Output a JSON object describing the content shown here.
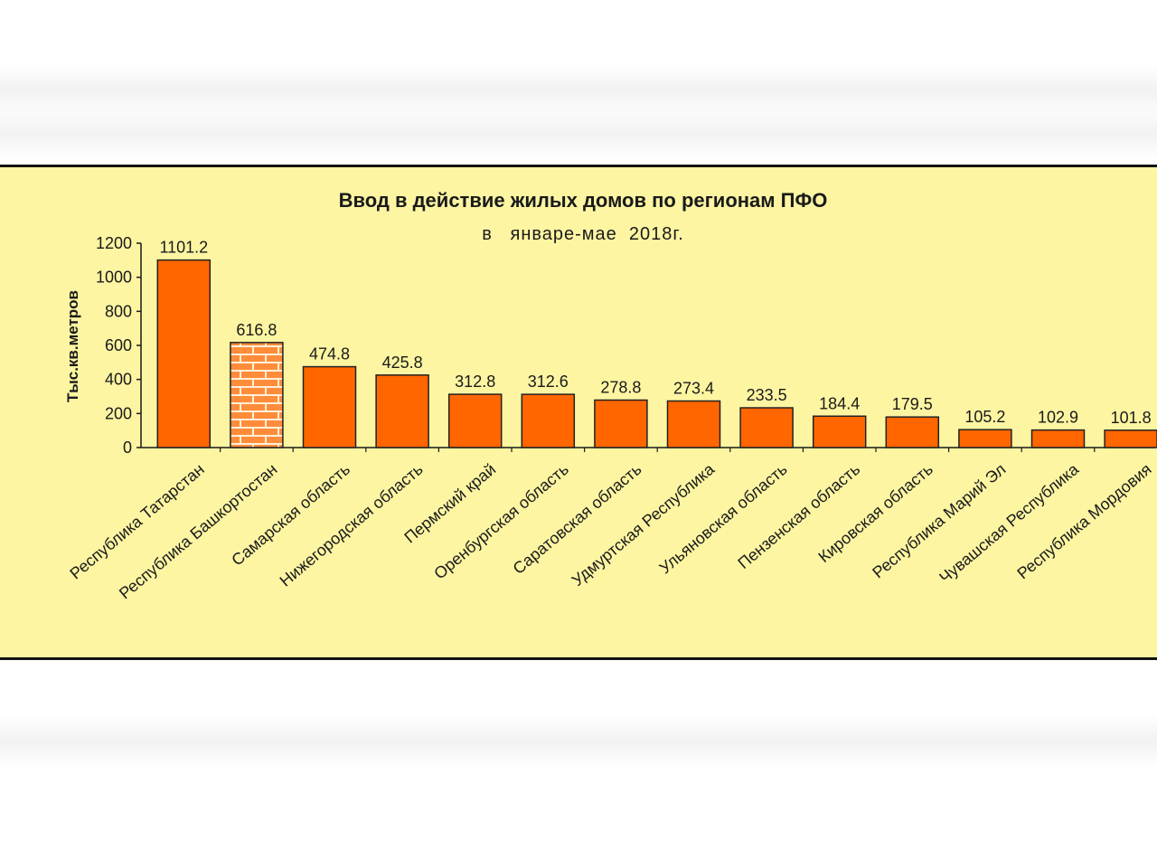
{
  "colors": {
    "bar": "#ff6600",
    "bar_stroke": "#222222",
    "brick": "#ff8c3a",
    "mortar": "#fff0d8",
    "title_band": "#fdf5a2"
  },
  "chart_data": {
    "type": "bar",
    "title": "Ввод в действие жилых домов по регионам ПФО",
    "subtitle": "в   январе-мае  2018г.",
    "ylabel": "Тыс.кв.метров",
    "xlabel": "",
    "ylim": [
      0,
      1200
    ],
    "yticks": [
      0,
      200,
      400,
      600,
      800,
      1000,
      1200
    ],
    "grid": false,
    "legend": "none",
    "categories": [
      "Республика Татарстан",
      "Республика Башкортостан",
      "Самарская область",
      "Нижегородская область",
      "Пермский край",
      "Оренбургская область",
      "Саратовская область",
      "Удмуртская Республика",
      "Ульяновская область",
      "Пензенская область",
      "Кировская область",
      "Республика Марий Эл",
      "Чувашская Республика",
      "Республика Мордовия"
    ],
    "values": [
      1101.2,
      616.8,
      474.8,
      425.8,
      312.8,
      312.6,
      278.8,
      273.4,
      233.5,
      184.4,
      179.5,
      105.2,
      102.9,
      101.8
    ],
    "value_labels": [
      "1101.2",
      "616.8",
      "474.8",
      "425.8",
      "312.8",
      "312.6",
      "278.8",
      "273.4",
      "233.5",
      "184.4",
      "179.5",
      "105.2",
      "102.9",
      "101.8"
    ],
    "highlight_index": 1,
    "highlight_pattern": "brick"
  }
}
